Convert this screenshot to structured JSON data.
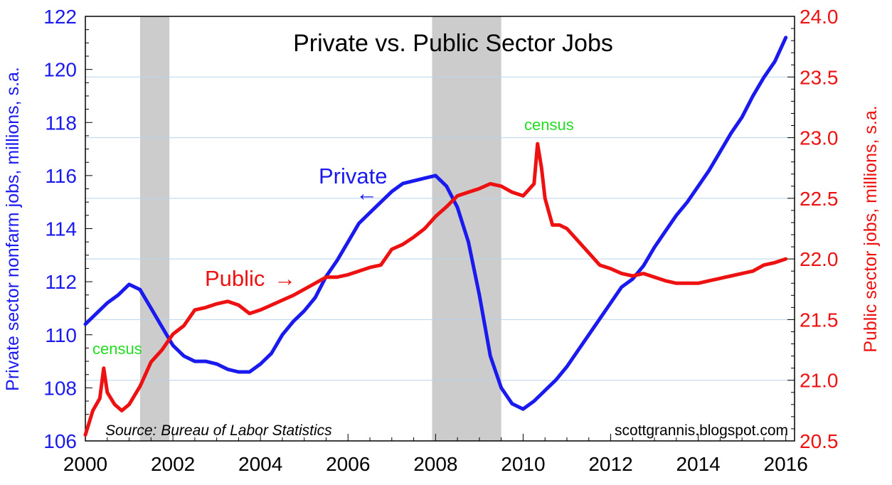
{
  "chart_data": {
    "type": "line",
    "title": "Private vs. Public Sector Jobs",
    "x_ticks": [
      "2000",
      "2002",
      "2004",
      "2006",
      "2008",
      "2010",
      "2012",
      "2014",
      "2016"
    ],
    "xlim": [
      2000,
      2016.2
    ],
    "left_axis": {
      "label": "Private sector nonfarm jobs, millions, s.a.",
      "ylim": [
        106,
        122
      ],
      "ticks": [
        "106",
        "108",
        "110",
        "112",
        "114",
        "116",
        "118",
        "120",
        "122"
      ],
      "color": "#1a1aee"
    },
    "right_axis": {
      "label": "Public sector jobs, millions, s.a.",
      "ylim": [
        20.5,
        24.0
      ],
      "ticks": [
        "20.5",
        "21.0",
        "21.5",
        "22.0",
        "22.5",
        "23.0",
        "23.5",
        "24.0"
      ],
      "color": "#ee1111"
    },
    "recessions": [
      [
        2001.25,
        2001.92
      ],
      [
        2007.92,
        2009.5
      ]
    ],
    "series": [
      {
        "name": "Private",
        "axis": "left",
        "color": "#1a1aee",
        "x": [
          2000.0,
          2000.25,
          2000.5,
          2000.75,
          2001.0,
          2001.25,
          2001.5,
          2001.75,
          2002.0,
          2002.25,
          2002.5,
          2002.75,
          2003.0,
          2003.25,
          2003.5,
          2003.75,
          2004.0,
          2004.25,
          2004.5,
          2004.75,
          2005.0,
          2005.25,
          2005.5,
          2005.75,
          2006.0,
          2006.25,
          2006.5,
          2006.75,
          2007.0,
          2007.25,
          2007.5,
          2007.75,
          2008.0,
          2008.25,
          2008.5,
          2008.75,
          2009.0,
          2009.25,
          2009.5,
          2009.75,
          2010.0,
          2010.25,
          2010.5,
          2010.75,
          2011.0,
          2011.25,
          2011.5,
          2011.75,
          2012.0,
          2012.25,
          2012.5,
          2012.75,
          2013.0,
          2013.25,
          2013.5,
          2013.75,
          2014.0,
          2014.25,
          2014.5,
          2014.75,
          2015.0,
          2015.25,
          2015.5,
          2015.75,
          2016.0
        ],
        "values": [
          110.4,
          110.8,
          111.2,
          111.5,
          111.9,
          111.7,
          111.0,
          110.3,
          109.6,
          109.2,
          109.0,
          109.0,
          108.9,
          108.7,
          108.6,
          108.6,
          108.9,
          109.3,
          110.0,
          110.5,
          110.9,
          111.4,
          112.2,
          112.8,
          113.5,
          114.2,
          114.6,
          115.0,
          115.4,
          115.7,
          115.8,
          115.9,
          116.0,
          115.6,
          114.8,
          113.5,
          111.5,
          109.2,
          108.0,
          107.4,
          107.2,
          107.5,
          107.9,
          108.3,
          108.8,
          109.4,
          110.0,
          110.6,
          111.2,
          111.8,
          112.1,
          112.6,
          113.3,
          113.9,
          114.5,
          115.0,
          115.6,
          116.2,
          116.9,
          117.6,
          118.2,
          119.0,
          119.7,
          120.3,
          121.2
        ]
      },
      {
        "name": "Public",
        "axis": "right",
        "color": "#ee1111",
        "x": [
          2000.0,
          2000.17,
          2000.33,
          2000.42,
          2000.5,
          2000.67,
          2000.83,
          2001.0,
          2001.25,
          2001.5,
          2001.75,
          2002.0,
          2002.25,
          2002.5,
          2002.75,
          2003.0,
          2003.25,
          2003.5,
          2003.75,
          2004.0,
          2004.25,
          2004.5,
          2004.75,
          2005.0,
          2005.25,
          2005.5,
          2005.75,
          2006.0,
          2006.25,
          2006.5,
          2006.75,
          2007.0,
          2007.25,
          2007.5,
          2007.75,
          2008.0,
          2008.25,
          2008.5,
          2008.75,
          2009.0,
          2009.25,
          2009.5,
          2009.75,
          2010.0,
          2010.25,
          2010.33,
          2010.42,
          2010.5,
          2010.67,
          2010.83,
          2011.0,
          2011.25,
          2011.5,
          2011.75,
          2012.0,
          2012.25,
          2012.5,
          2012.75,
          2013.0,
          2013.25,
          2013.5,
          2013.75,
          2014.0,
          2014.25,
          2014.5,
          2014.75,
          2015.0,
          2015.25,
          2015.5,
          2015.75,
          2016.0
        ],
        "values": [
          20.55,
          20.75,
          20.85,
          21.1,
          20.9,
          20.8,
          20.75,
          20.8,
          20.95,
          21.15,
          21.25,
          21.38,
          21.45,
          21.58,
          21.6,
          21.63,
          21.65,
          21.62,
          21.55,
          21.58,
          21.62,
          21.66,
          21.7,
          21.75,
          21.8,
          21.85,
          21.85,
          21.87,
          21.9,
          21.93,
          21.95,
          22.08,
          22.12,
          22.18,
          22.25,
          22.35,
          22.43,
          22.52,
          22.55,
          22.58,
          22.62,
          22.6,
          22.55,
          22.52,
          22.62,
          22.95,
          22.75,
          22.5,
          22.28,
          22.28,
          22.25,
          22.15,
          22.05,
          21.95,
          21.92,
          21.88,
          21.86,
          21.88,
          21.85,
          21.82,
          21.8,
          21.8,
          21.8,
          21.82,
          21.84,
          21.86,
          21.88,
          21.9,
          21.95,
          21.97,
          22.0
        ]
      }
    ],
    "annotations": {
      "private_label": "Private",
      "private_arrow": "←",
      "public_label": "Public",
      "public_arrow": "→",
      "census_1": "census",
      "census_2": "census",
      "source": "Source: Bureau of Labor Statistics",
      "blog": "scottgrannis.blogspot.com"
    }
  }
}
